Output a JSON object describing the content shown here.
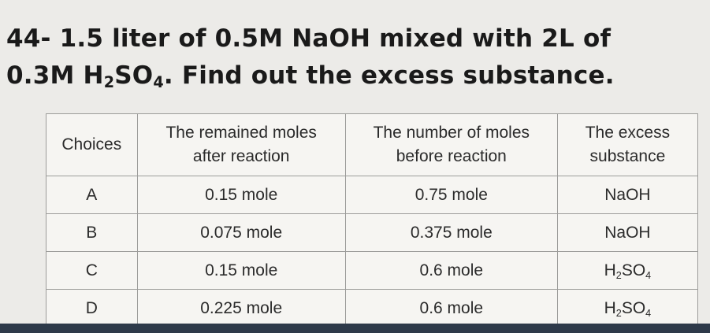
{
  "question": {
    "line1": "44- 1.5 liter of 0.5M NaOH mixed with 2L of",
    "line2_prefix": "0.3M H",
    "line2_sub1": "2",
    "line2_mid": "SO",
    "line2_sub2": "4",
    "line2_suffix": ". Find out the excess substance."
  },
  "table": {
    "headers": {
      "choices": "Choices",
      "remained_line1": "The remained moles",
      "remained_line2": "after reaction",
      "before_line1": "The number of moles",
      "before_line2": "before reaction",
      "excess_line1": "The excess",
      "excess_line2": "substance"
    },
    "rows": [
      {
        "choice": "A",
        "remained": "0.15 mole",
        "before": "0.75 mole",
        "excess_main": "NaOH"
      },
      {
        "choice": "B",
        "remained": "0.075 mole",
        "before": "0.375 mole",
        "excess_main": "NaOH"
      },
      {
        "choice": "C",
        "remained": "0.15 mole",
        "before": "0.6 mole",
        "excess_h": "H",
        "excess_s1": "2",
        "excess_so": "SO",
        "excess_s2": "4"
      },
      {
        "choice": "D",
        "remained": "0.225 mole",
        "before": "0.6 mole",
        "excess_h": "H",
        "excess_s1": "2",
        "excess_so": "SO",
        "excess_s2": "4"
      }
    ]
  }
}
